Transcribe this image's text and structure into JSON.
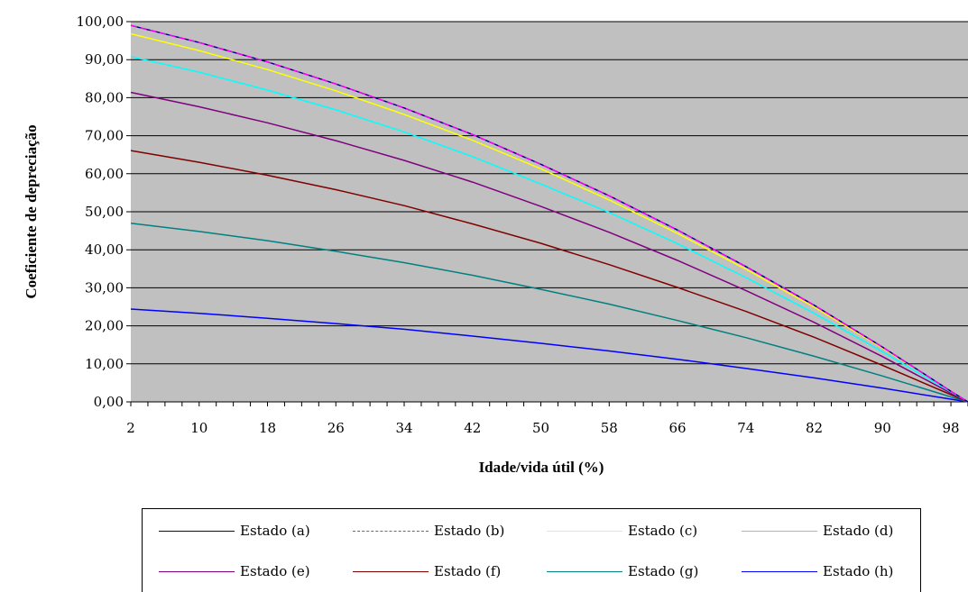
{
  "chart_data": {
    "type": "line",
    "xlabel": "Idade/vida útil (%)",
    "ylabel": "Coeficiente de depreciação",
    "x_ticks": [
      "2",
      "10",
      "18",
      "26",
      "34",
      "42",
      "50",
      "58",
      "66",
      "74",
      "82",
      "90",
      "98"
    ],
    "y_ticks": [
      "0,00",
      "10,00",
      "20,00",
      "30,00",
      "40,00",
      "50,00",
      "60,00",
      "70,00",
      "80,00",
      "90,00",
      "100,00"
    ],
    "ylim": [
      0,
      100
    ],
    "xlim": [
      2,
      100
    ],
    "grid": "horizontal",
    "plot_background": "#c0c0c0",
    "legend_position": "bottom",
    "x": [
      2,
      10,
      18,
      26,
      34,
      42,
      50,
      58,
      66,
      74,
      82,
      90,
      98,
      100
    ],
    "series": [
      {
        "name": "Estado (a)",
        "color": "#000080",
        "dash": "solid",
        "values": [
          99.0,
          94.5,
          89.4,
          83.6,
          77.3,
          70.3,
          62.5,
          54.2,
          45.2,
          35.6,
          25.4,
          14.4,
          2.8,
          0.0
        ]
      },
      {
        "name": "Estado (b)",
        "color": "#ff00ff",
        "dash": "dashed",
        "values": [
          99.0,
          94.5,
          89.4,
          83.6,
          77.3,
          70.3,
          62.5,
          54.2,
          45.2,
          35.6,
          25.4,
          14.4,
          2.8,
          0.0
        ]
      },
      {
        "name": "Estado (c)",
        "color": "#ffff00",
        "dash": "solid",
        "values": [
          96.8,
          92.4,
          87.4,
          81.8,
          75.6,
          68.8,
          61.3,
          53.1,
          44.3,
          34.9,
          24.9,
          14.2,
          2.8,
          0.0
        ]
      },
      {
        "name": "Estado (d)",
        "color": "#00ffff",
        "dash": "solid",
        "values": [
          90.8,
          86.7,
          82.0,
          76.8,
          71.0,
          64.5,
          57.3,
          49.8,
          41.6,
          32.7,
          23.3,
          13.2,
          2.6,
          0.0
        ]
      },
      {
        "name": "Estado (e)",
        "color": "#800080",
        "dash": "solid",
        "values": [
          81.4,
          77.6,
          73.4,
          68.7,
          63.5,
          57.8,
          51.4,
          44.6,
          37.2,
          29.3,
          20.9,
          11.9,
          2.3,
          0.0
        ]
      },
      {
        "name": "Estado (f)",
        "color": "#800000",
        "dash": "solid",
        "values": [
          66.1,
          63.0,
          59.6,
          55.8,
          51.6,
          46.8,
          41.7,
          36.1,
          30.1,
          23.8,
          17.0,
          9.6,
          1.9,
          0.0
        ]
      },
      {
        "name": "Estado (g)",
        "color": "#008080",
        "dash": "solid",
        "values": [
          47.0,
          44.8,
          42.4,
          39.6,
          36.6,
          33.3,
          29.6,
          25.7,
          21.4,
          16.9,
          12.0,
          6.8,
          1.3,
          0.0
        ]
      },
      {
        "name": "Estado (h)",
        "color": "#0000ff",
        "dash": "solid",
        "values": [
          24.4,
          23.3,
          22.0,
          20.6,
          19.1,
          17.3,
          15.4,
          13.4,
          11.2,
          8.8,
          6.3,
          3.6,
          0.7,
          0.0
        ]
      }
    ]
  }
}
